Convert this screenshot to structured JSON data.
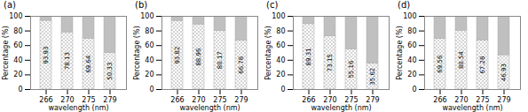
{
  "chart_data": [
    {
      "type": "bar",
      "title": "(a)",
      "stacked": true,
      "grid": false,
      "xlabel": "wavelength (nm)",
      "ylabel": "Percentage (%)",
      "categories": [
        "266",
        "270",
        "275",
        "279"
      ],
      "ylim": [
        0,
        100
      ],
      "yticks": [
        0,
        20,
        40,
        60,
        80,
        100
      ],
      "series": [
        {
          "color": "white",
          "data_labels": true,
          "values": [
            93.93,
            78.13,
            69.64,
            50.33
          ]
        },
        {
          "color": "#c0c0c0",
          "values": [
            6.07,
            21.87,
            30.36,
            49.67
          ]
        }
      ]
    },
    {
      "type": "bar",
      "title": "(b)",
      "stacked": true,
      "grid": false,
      "xlabel": "wavelength (nm)",
      "ylabel": "Percentage (%)",
      "categories": [
        "266",
        "270",
        "275",
        "279"
      ],
      "ylim": [
        0,
        100
      ],
      "yticks": [
        0,
        20,
        40,
        60,
        80,
        100
      ],
      "series": [
        {
          "color": "white",
          "data_labels": true,
          "values": [
            93.82,
            88.96,
            80.17,
            66.78
          ]
        },
        {
          "color": "#c0c0c0",
          "values": [
            6.18,
            11.04,
            19.83,
            33.22
          ]
        }
      ]
    },
    {
      "type": "bar",
      "title": "(c)",
      "stacked": true,
      "grid": false,
      "xlabel": "wavelength (nm)",
      "ylabel": "Percentage (%)",
      "categories": [
        "266",
        "270",
        "275",
        "279"
      ],
      "ylim": [
        0,
        100
      ],
      "yticks": [
        0,
        20,
        40,
        60,
        80,
        100
      ],
      "series": [
        {
          "color": "white",
          "data_labels": true,
          "values": [
            89.31,
            73.15,
            55.16,
            35.62
          ]
        },
        {
          "color": "#c0c0c0",
          "values": [
            10.69,
            26.85,
            44.84,
            64.38
          ]
        }
      ]
    },
    {
      "type": "bar",
      "title": "(d)",
      "stacked": true,
      "grid": false,
      "xlabel": "wavelength (nm)",
      "ylabel": "Percentage (%)",
      "categories": [
        "266",
        "270",
        "275",
        "279"
      ],
      "ylim": [
        0,
        100
      ],
      "yticks": [
        0,
        20,
        40,
        60,
        80,
        100
      ],
      "series": [
        {
          "color": "white",
          "data_labels": true,
          "values": [
            69.56,
            80.54,
            67.28,
            46.93
          ]
        },
        {
          "color": "#c0c0c0",
          "values": [
            30.44,
            19.46,
            32.72,
            53.07
          ]
        }
      ]
    }
  ]
}
